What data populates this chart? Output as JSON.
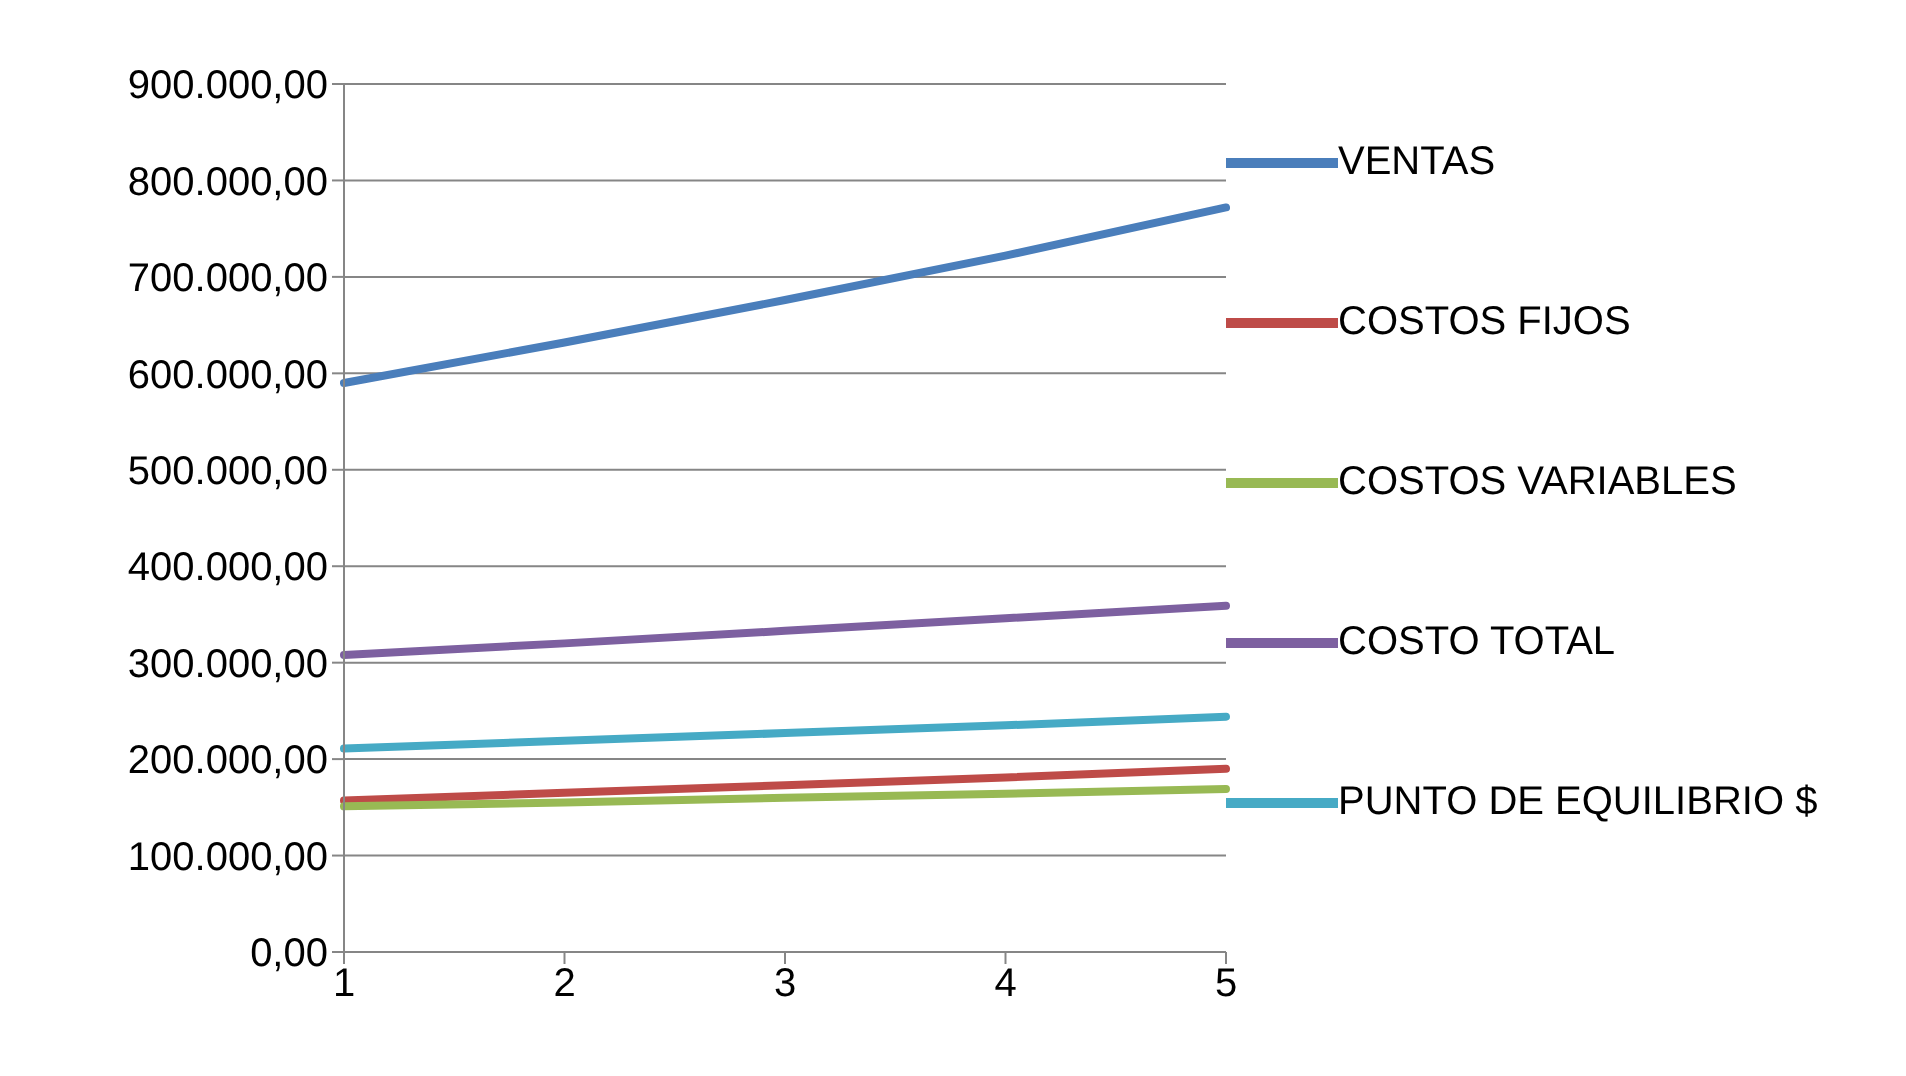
{
  "chart_data": {
    "type": "line",
    "categories": [
      "1",
      "2",
      "3",
      "4",
      "5"
    ],
    "series": [
      {
        "name": "VENTAS",
        "color": "#4a7ebb",
        "values": [
          590000,
          632000,
          676000,
          722000,
          772000
        ]
      },
      {
        "name": "COSTOS FIJOS",
        "color": "#be4b48",
        "values": [
          157000,
          165000,
          173000,
          181000,
          190000
        ]
      },
      {
        "name": "COSTOS VARIABLES",
        "color": "#98b954",
        "values": [
          151000,
          155000,
          160000,
          164000,
          169000
        ]
      },
      {
        "name": "COSTO TOTAL",
        "color": "#7d60a0",
        "values": [
          308000,
          320000,
          333000,
          346000,
          359000
        ]
      },
      {
        "name": "PUNTO DE EQUILIBRIO $",
        "color": "#46aac5",
        "values": [
          211000,
          219000,
          227000,
          235000,
          244000
        ]
      }
    ],
    "ylim": [
      0,
      900000
    ],
    "yticks": [
      {
        "value": 0,
        "label": "0,00"
      },
      {
        "value": 100000,
        "label": "100.000,00"
      },
      {
        "value": 200000,
        "label": "200.000,00"
      },
      {
        "value": 300000,
        "label": "300.000,00"
      },
      {
        "value": 400000,
        "label": "400.000,00"
      },
      {
        "value": 500000,
        "label": "500.000,00"
      },
      {
        "value": 600000,
        "label": "600.000,00"
      },
      {
        "value": 700000,
        "label": "700.000,00"
      },
      {
        "value": 800000,
        "label": "800.000,00"
      },
      {
        "value": 900000,
        "label": "900.000,00"
      }
    ],
    "grid": "y",
    "legend": "right",
    "marker": "none",
    "line_style": "solid"
  }
}
